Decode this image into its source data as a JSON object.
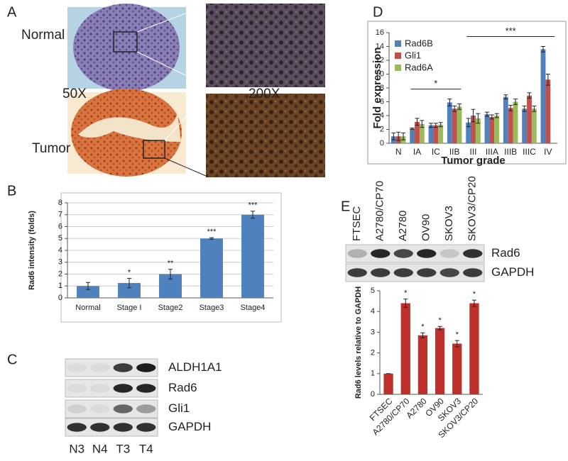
{
  "figure": {
    "panel_letters": [
      "A",
      "B",
      "C",
      "D",
      "E"
    ],
    "panel_a": {
      "rows": [
        "Normal",
        "Tumor"
      ],
      "magnifications": [
        "50X",
        "200X"
      ]
    },
    "panel_c": {
      "bands": [
        "ALDH1A1",
        "Rad6",
        "Gli1",
        "GAPDH"
      ],
      "lanes": [
        "N3",
        "N4",
        "T3",
        "T4"
      ]
    },
    "panel_e_blot": {
      "bands": [
        "Rad6",
        "GAPDH"
      ],
      "lanes": [
        "FTSEC",
        "A2780/CP70",
        "A2780",
        "OV90",
        "SKOV3",
        "SKOV3/CP20"
      ]
    }
  },
  "chart_data": [
    {
      "type": "bar",
      "ylabel": "Rad6 intensity (folds)",
      "categories": [
        "Normal",
        "Stage I",
        "Stage2",
        "Stage3",
        "Stage4"
      ],
      "values": [
        1,
        1.25,
        2,
        5,
        7
      ],
      "errors": [
        0.3,
        0.4,
        0.4,
        0.07,
        0.3
      ],
      "stars": [
        null,
        "*",
        "**",
        "***",
        "***"
      ],
      "color": "#4f81bd",
      "ylim": [
        0,
        8
      ],
      "yticks": [
        0,
        1,
        2,
        3,
        4,
        5,
        6,
        7,
        8
      ],
      "grid": true
    },
    {
      "type": "bar",
      "ylabel": "Fold expression",
      "xlabel": "Tumor grade",
      "categories": [
        "N",
        "IA",
        "IC",
        "IIB",
        "III",
        "IIIA",
        "IIIB",
        "IIIC",
        "IV"
      ],
      "series": [
        {
          "name": "Rad6B",
          "color": "#4f81bd",
          "values": [
            1,
            2.1,
            2.6,
            5.9,
            3,
            4.2,
            6.7,
            5,
            13.6
          ],
          "errors": [
            0.5,
            0.1,
            0.3,
            0.5,
            0.6,
            0.3,
            0.3,
            0.4,
            0.4
          ]
        },
        {
          "name": "Gli1",
          "color": "#c0504d",
          "values": [
            1,
            3.1,
            2.6,
            5,
            4,
            3.8,
            5.1,
            6.9,
            9.2
          ],
          "errors": [
            0.6,
            0.5,
            0.3,
            0.4,
            0.9,
            0.3,
            0.4,
            0.4,
            0.8
          ]
        },
        {
          "name": "Rad6A",
          "color": "#9bbb59",
          "values": [
            1,
            2.8,
            2.7,
            5.3,
            3.6,
            4,
            6,
            5,
            null
          ],
          "errors": [
            0.5,
            0.5,
            0.3,
            0.4,
            0.7,
            0.3,
            0.4,
            0.4,
            null
          ]
        }
      ],
      "brackets": [
        {
          "label": "*",
          "categories": [
            "IA",
            "IIB"
          ]
        },
        {
          "label": "***",
          "categories": [
            "III",
            "IV"
          ]
        }
      ],
      "legend": "upper left",
      "ylim": [
        0,
        16
      ],
      "yticks": [
        0,
        2,
        4,
        6,
        8,
        10,
        12,
        14,
        16
      ],
      "grid": false
    },
    {
      "type": "bar",
      "ylabel": "Rad6 levels relative to GAPDH",
      "categories": [
        "FTSEC",
        "A2780/CP70",
        "A2780",
        "OV90",
        "SKOV3",
        "SKOV3/CP20"
      ],
      "values": [
        1,
        4.4,
        2.85,
        3.2,
        2.45,
        4.4
      ],
      "errors": [
        0,
        0.2,
        0.12,
        0.08,
        0.15,
        0.15
      ],
      "stars": [
        null,
        "*",
        "*",
        "*",
        "*",
        "*"
      ],
      "color": "#c0302a",
      "ylim": [
        0,
        5
      ],
      "yticks": [
        0,
        1,
        2,
        3,
        4,
        5
      ],
      "grid": false
    }
  ]
}
